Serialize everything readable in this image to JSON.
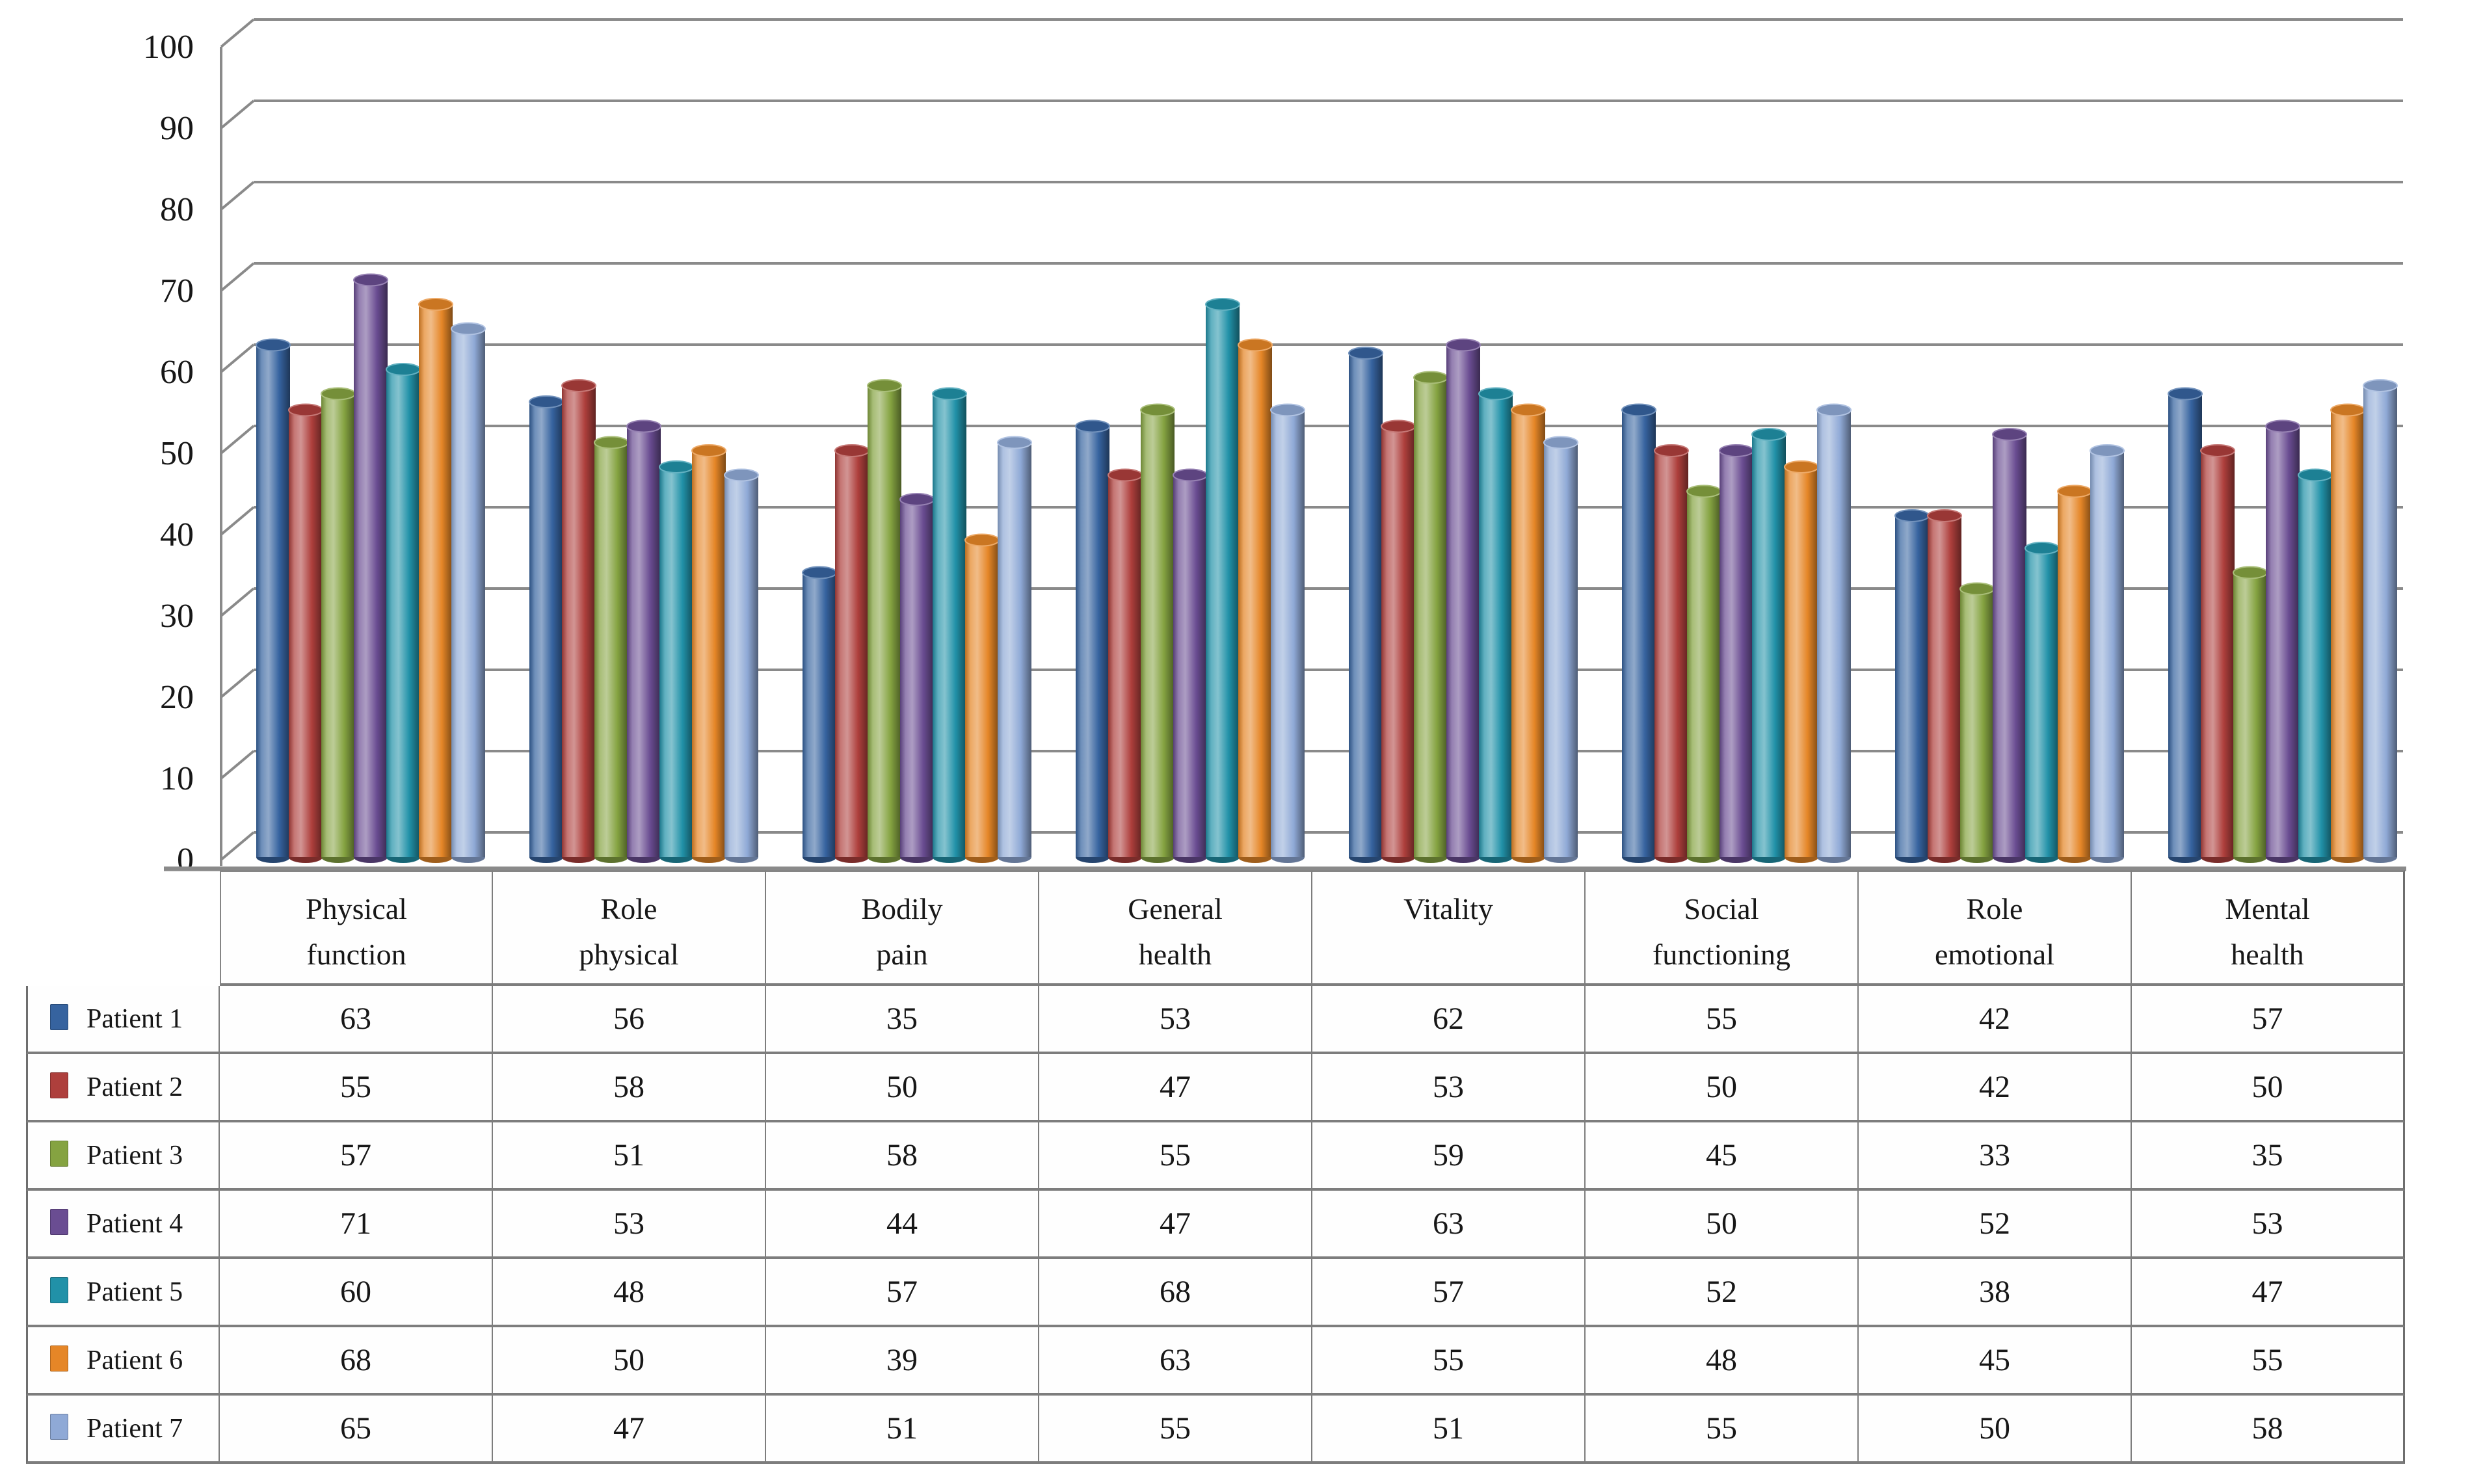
{
  "chart_data": {
    "type": "bar",
    "variant": "3d-cylinder",
    "title": "",
    "xlabel": "",
    "ylabel": "",
    "ylim": [
      0,
      100
    ],
    "ytick_step": 10,
    "yticks": [
      "0",
      "10",
      "20",
      "30",
      "40",
      "50",
      "60",
      "70",
      "80",
      "90",
      "100"
    ],
    "grid": true,
    "legend_position": "table-left",
    "categories": [
      "Physical\nfunction",
      "Role\nphysical",
      "Bodily\npain",
      "General\nhealth",
      "Vitality",
      "Social\nfunctioning",
      "Role\nemotional",
      "Mental\nhealth"
    ],
    "series": [
      {
        "name": "Patient 1",
        "color": "#36639F",
        "values": [
          63,
          56,
          35,
          53,
          62,
          55,
          42,
          57
        ]
      },
      {
        "name": "Patient 2",
        "color": "#AE3F3C",
        "values": [
          55,
          58,
          50,
          47,
          53,
          50,
          42,
          50
        ]
      },
      {
        "name": "Patient 3",
        "color": "#85A341",
        "values": [
          57,
          51,
          58,
          55,
          59,
          45,
          33,
          35
        ]
      },
      {
        "name": "Patient 4",
        "color": "#6A4D92",
        "values": [
          71,
          53,
          44,
          47,
          63,
          50,
          52,
          53
        ]
      },
      {
        "name": "Patient 5",
        "color": "#2191A8",
        "values": [
          60,
          48,
          57,
          68,
          57,
          52,
          38,
          47
        ]
      },
      {
        "name": "Patient 6",
        "color": "#E58627",
        "values": [
          68,
          50,
          39,
          63,
          55,
          48,
          45,
          55
        ]
      },
      {
        "name": "Patient 7",
        "color": "#8FA9D6",
        "values": [
          65,
          47,
          51,
          55,
          51,
          55,
          50,
          58
        ]
      }
    ],
    "colors": {
      "gridline": "#8a8a8a",
      "axis": "#8a8a8a",
      "floor": "#8a8a8a",
      "table_border": "#7d7d7d",
      "text": "#171717"
    }
  }
}
